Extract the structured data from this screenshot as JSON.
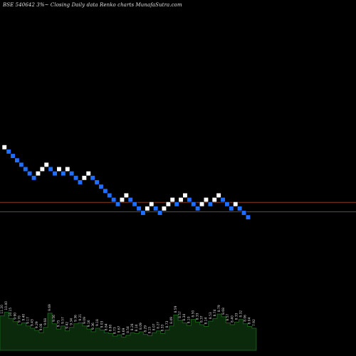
{
  "chart_data": {
    "type": "renko",
    "title": "BSE 540642  3%~  Closing Daily data  Renko  charts MunafaSutra.com",
    "colors": {
      "background": "#000000",
      "up": "#ffffff",
      "down": "#1f6fff",
      "level_line": "#8b3a1a",
      "volume_fill": "#0b2a0b",
      "volume_line": "#1a5c1a"
    },
    "bricks": [
      {
        "col": 0,
        "row": 0,
        "dir": "up"
      },
      {
        "col": 1,
        "row": 1,
        "dir": "down"
      },
      {
        "col": 2,
        "row": 2,
        "dir": "down"
      },
      {
        "col": 3,
        "row": 3,
        "dir": "down"
      },
      {
        "col": 4,
        "row": 4,
        "dir": "down"
      },
      {
        "col": 5,
        "row": 5,
        "dir": "down"
      },
      {
        "col": 6,
        "row": 6,
        "dir": "down"
      },
      {
        "col": 7,
        "row": 7,
        "dir": "down"
      },
      {
        "col": 8,
        "row": 6,
        "dir": "up"
      },
      {
        "col": 9,
        "row": 5,
        "dir": "up"
      },
      {
        "col": 10,
        "row": 4,
        "dir": "up"
      },
      {
        "col": 11,
        "row": 5,
        "dir": "down"
      },
      {
        "col": 12,
        "row": 6,
        "dir": "down"
      },
      {
        "col": 13,
        "row": 5,
        "dir": "up"
      },
      {
        "col": 14,
        "row": 6,
        "dir": "down"
      },
      {
        "col": 15,
        "row": 5,
        "dir": "up"
      },
      {
        "col": 16,
        "row": 6,
        "dir": "down"
      },
      {
        "col": 17,
        "row": 7,
        "dir": "down"
      },
      {
        "col": 18,
        "row": 8,
        "dir": "down"
      },
      {
        "col": 19,
        "row": 7,
        "dir": "up"
      },
      {
        "col": 20,
        "row": 6,
        "dir": "up"
      },
      {
        "col": 21,
        "row": 7,
        "dir": "down"
      },
      {
        "col": 22,
        "row": 8,
        "dir": "down"
      },
      {
        "col": 23,
        "row": 9,
        "dir": "down"
      },
      {
        "col": 24,
        "row": 10,
        "dir": "down"
      },
      {
        "col": 25,
        "row": 11,
        "dir": "down"
      },
      {
        "col": 26,
        "row": 12,
        "dir": "down"
      },
      {
        "col": 27,
        "row": 13,
        "dir": "down"
      },
      {
        "col": 28,
        "row": 12,
        "dir": "up"
      },
      {
        "col": 29,
        "row": 11,
        "dir": "up"
      },
      {
        "col": 30,
        "row": 12,
        "dir": "down"
      },
      {
        "col": 31,
        "row": 13,
        "dir": "down"
      },
      {
        "col": 32,
        "row": 14,
        "dir": "down"
      },
      {
        "col": 33,
        "row": 15,
        "dir": "down"
      },
      {
        "col": 34,
        "row": 14,
        "dir": "up"
      },
      {
        "col": 35,
        "row": 13,
        "dir": "up"
      },
      {
        "col": 36,
        "row": 14,
        "dir": "down"
      },
      {
        "col": 37,
        "row": 15,
        "dir": "down"
      },
      {
        "col": 38,
        "row": 14,
        "dir": "up"
      },
      {
        "col": 39,
        "row": 13,
        "dir": "up"
      },
      {
        "col": 40,
        "row": 12,
        "dir": "up"
      },
      {
        "col": 41,
        "row": 13,
        "dir": "down"
      },
      {
        "col": 42,
        "row": 12,
        "dir": "up"
      },
      {
        "col": 43,
        "row": 11,
        "dir": "up"
      },
      {
        "col": 44,
        "row": 12,
        "dir": "down"
      },
      {
        "col": 45,
        "row": 13,
        "dir": "down"
      },
      {
        "col": 46,
        "row": 14,
        "dir": "down"
      },
      {
        "col": 47,
        "row": 13,
        "dir": "up"
      },
      {
        "col": 48,
        "row": 12,
        "dir": "up"
      },
      {
        "col": 49,
        "row": 13,
        "dir": "down"
      },
      {
        "col": 50,
        "row": 12,
        "dir": "up"
      },
      {
        "col": 51,
        "row": 11,
        "dir": "up"
      },
      {
        "col": 52,
        "row": 12,
        "dir": "down"
      },
      {
        "col": 53,
        "row": 13,
        "dir": "down"
      },
      {
        "col": 54,
        "row": 14,
        "dir": "down"
      },
      {
        "col": 55,
        "row": 13,
        "dir": "up"
      },
      {
        "col": 56,
        "row": 14,
        "dir": "down"
      },
      {
        "col": 57,
        "row": 15,
        "dir": "down"
      },
      {
        "col": 58,
        "row": 16,
        "dir": "down"
      }
    ],
    "level_lines": [
      {
        "row": 12.6
      },
      {
        "row": 14.75
      }
    ],
    "volume": [
      {
        "value": 78,
        "label": "11.20"
      },
      {
        "value": 86,
        "label": "10.40"
      },
      {
        "value": 72,
        "label": "10.15"
      },
      {
        "value": 65,
        "label": "9.90"
      },
      {
        "value": 58,
        "label": "9.70"
      },
      {
        "value": 62,
        "label": "9.40"
      },
      {
        "value": 55,
        "label": "9.17"
      },
      {
        "value": 50,
        "label": "9.43"
      },
      {
        "value": 45,
        "label": "9.29"
      },
      {
        "value": 40,
        "label": "9.08"
      },
      {
        "value": 52,
        "label": "9.68"
      },
      {
        "value": 84,
        "label": "9.69"
      },
      {
        "value": 60,
        "label": "9.56"
      },
      {
        "value": 48,
        "label": "9.75"
      },
      {
        "value": 55,
        "label": "9.57"
      },
      {
        "value": 44,
        "label": "9.42"
      },
      {
        "value": 52,
        "label": "9.34"
      },
      {
        "value": 60,
        "label": "9.36"
      },
      {
        "value": 62,
        "label": "9.21"
      },
      {
        "value": 55,
        "label": "9.09"
      },
      {
        "value": 48,
        "label": "9.16"
      },
      {
        "value": 42,
        "label": "9.36"
      },
      {
        "value": 50,
        "label": "9.18"
      },
      {
        "value": 46,
        "label": "9.03"
      },
      {
        "value": 40,
        "label": "8.84"
      },
      {
        "value": 38,
        "label": "8.80"
      },
      {
        "value": 32,
        "label": "8.73"
      },
      {
        "value": 35,
        "label": "8.67"
      },
      {
        "value": 30,
        "label": "8.69"
      },
      {
        "value": 34,
        "label": "8.54"
      },
      {
        "value": 40,
        "label": "8.28"
      },
      {
        "value": 38,
        "label": "8.14"
      },
      {
        "value": 42,
        "label": "8.09"
      },
      {
        "value": 36,
        "label": "8.29"
      },
      {
        "value": 33,
        "label": "8.15"
      },
      {
        "value": 40,
        "label": "8.07"
      },
      {
        "value": 44,
        "label": "8.27"
      },
      {
        "value": 38,
        "label": "8.33"
      },
      {
        "value": 46,
        "label": "8.73"
      },
      {
        "value": 55,
        "label": "8.49"
      },
      {
        "value": 80,
        "label": "8.59"
      },
      {
        "value": 68,
        "label": "8.57"
      },
      {
        "value": 62,
        "label": "8.34"
      },
      {
        "value": 56,
        "label": "8.10"
      },
      {
        "value": 70,
        "label": "8.50"
      },
      {
        "value": 64,
        "label": "8.33"
      },
      {
        "value": 58,
        "label": "8.37"
      },
      {
        "value": 54,
        "label": "8.14"
      },
      {
        "value": 66,
        "label": "8.53"
      },
      {
        "value": 72,
        "label": "8.74"
      },
      {
        "value": 82,
        "label": "8.79"
      },
      {
        "value": 76,
        "label": "8.68"
      },
      {
        "value": 62,
        "label": "8.57"
      },
      {
        "value": 58,
        "label": "8.40"
      },
      {
        "value": 64,
        "label": "8.33"
      },
      {
        "value": 70,
        "label": "8.32"
      },
      {
        "value": 60,
        "label": "8.06"
      },
      {
        "value": 54,
        "label": "8.04"
      },
      {
        "value": 50,
        "label": "7.92"
      }
    ]
  }
}
